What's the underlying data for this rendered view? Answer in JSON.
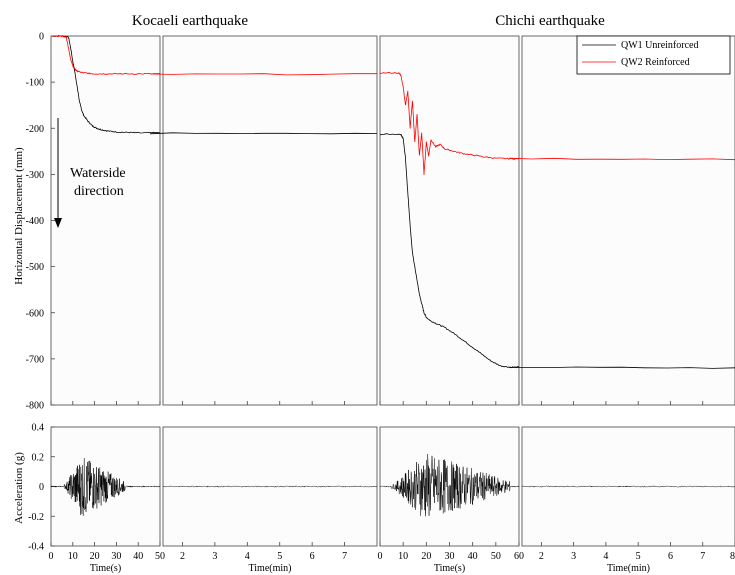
{
  "chart_data": {
    "type": "line",
    "titles": [
      "Kocaeli earthquake",
      "Chichi earthquake"
    ],
    "displacement": {
      "ylabel": "Horizontal Displacement (mm)",
      "ylim": [
        -800,
        0
      ],
      "yticks": [
        "0",
        "-100",
        "-200",
        "-300",
        "-400",
        "-500",
        "-600",
        "-700",
        "-800"
      ],
      "annotation_line1": "Waterside",
      "annotation_line2": "direction",
      "legend": [
        "QW1 Unreinforced",
        "QW2 Reinforced"
      ],
      "series": [
        {
          "name": "QW1 Unreinforced",
          "color": "#000000",
          "kocaeli_seconds": [
            [
              0,
              0
            ],
            [
              5,
              0
            ],
            [
              8,
              -2
            ],
            [
              9,
              -25
            ],
            [
              10,
              -55
            ],
            [
              11,
              -80
            ],
            [
              12,
              -110
            ],
            [
              13,
              -140
            ],
            [
              14,
              -160
            ],
            [
              15,
              -172
            ],
            [
              17,
              -185
            ],
            [
              19,
              -195
            ],
            [
              21,
              -200
            ],
            [
              23,
              -203
            ],
            [
              26,
              -206
            ],
            [
              30,
              -208
            ],
            [
              35,
              -209
            ],
            [
              40,
              -210
            ],
            [
              50,
              -210
            ]
          ],
          "kocaeli_minutes": [
            [
              1,
              -211
            ],
            [
              8,
              -212
            ]
          ],
          "chichi_seconds": [
            [
              0,
              -213
            ],
            [
              9,
              -213
            ],
            [
              10,
              -222
            ],
            [
              11,
              -265
            ],
            [
              12,
              -340
            ],
            [
              13,
              -410
            ],
            [
              14,
              -470
            ],
            [
              15,
              -500
            ],
            [
              16,
              -530
            ],
            [
              17,
              -560
            ],
            [
              18,
              -580
            ],
            [
              19,
              -600
            ],
            [
              20,
              -610
            ],
            [
              22,
              -618
            ],
            [
              25,
              -625
            ],
            [
              28,
              -632
            ],
            [
              32,
              -645
            ],
            [
              36,
              -660
            ],
            [
              40,
              -675
            ],
            [
              44,
              -690
            ],
            [
              48,
              -705
            ],
            [
              52,
              -715
            ],
            [
              56,
              -718
            ],
            [
              60,
              -718
            ]
          ],
          "chichi_minutes": [
            [
              1,
              -718
            ],
            [
              8,
              -720
            ]
          ]
        },
        {
          "name": "QW2 Reinforced",
          "color": "#ff0000",
          "kocaeli_seconds": [
            [
              0,
              0
            ],
            [
              5,
              0
            ],
            [
              7,
              -3
            ],
            [
              8,
              -25
            ],
            [
              9,
              -50
            ],
            [
              10,
              -65
            ],
            [
              11,
              -72
            ],
            [
              12,
              -76
            ],
            [
              14,
              -79
            ],
            [
              17,
              -81
            ],
            [
              20,
              -82
            ],
            [
              25,
              -82
            ],
            [
              30,
              -82
            ],
            [
              40,
              -82
            ],
            [
              50,
              -82
            ]
          ],
          "kocaeli_minutes": [
            [
              1,
              -83
            ],
            [
              8,
              -83
            ]
          ],
          "chichi_seconds": [
            [
              0,
              -80
            ],
            [
              8,
              -80
            ],
            [
              9,
              -85
            ],
            [
              10,
              -110
            ],
            [
              11,
              -150
            ],
            [
              12,
              -120
            ],
            [
              13,
              -200
            ],
            [
              14,
              -140
            ],
            [
              15,
              -230
            ],
            [
              16,
              -170
            ],
            [
              17,
              -260
            ],
            [
              18,
              -210
            ],
            [
              19,
              -300
            ],
            [
              20,
              -230
            ],
            [
              21,
              -260
            ],
            [
              22,
              -225
            ],
            [
              24,
              -240
            ],
            [
              26,
              -235
            ],
            [
              28,
              -245
            ],
            [
              32,
              -250
            ],
            [
              36,
              -255
            ],
            [
              40,
              -258
            ],
            [
              45,
              -262
            ],
            [
              50,
              -265
            ],
            [
              55,
              -266
            ],
            [
              60,
              -266
            ]
          ],
          "chichi_minutes": [
            [
              1,
              -266
            ],
            [
              8,
              -267
            ]
          ]
        }
      ]
    },
    "acceleration": {
      "ylabel": "Acceleration (g)",
      "ylim": [
        -0.4,
        0.4
      ],
      "yticks": [
        "0.4",
        "0.2",
        "0",
        "-0.2",
        "-0.4"
      ],
      "kocaeli_peak": 0.22,
      "kocaeli_active": [
        6,
        34
      ],
      "chichi_peak": 0.24,
      "chichi_active": [
        5,
        56
      ]
    },
    "xaxis": {
      "kocaeli_seconds": {
        "label": "Time(s)",
        "range": [
          0,
          50
        ],
        "ticks": [
          "0",
          "10",
          "20",
          "30",
          "40",
          "50"
        ]
      },
      "kocaeli_minutes": {
        "label": "Time(min)",
        "range": [
          1.4,
          8
        ],
        "ticks": [
          "2",
          "3",
          "4",
          "5",
          "6",
          "7"
        ]
      },
      "chichi_seconds": {
        "label": "Time(s)",
        "range": [
          0,
          60
        ],
        "ticks": [
          "0",
          "10",
          "20",
          "30",
          "40",
          "50",
          "60"
        ]
      },
      "chichi_minutes": {
        "label": "Time(min)",
        "range": [
          1.4,
          8
        ],
        "ticks": [
          "2",
          "3",
          "4",
          "5",
          "6",
          "7",
          "8"
        ]
      }
    }
  }
}
